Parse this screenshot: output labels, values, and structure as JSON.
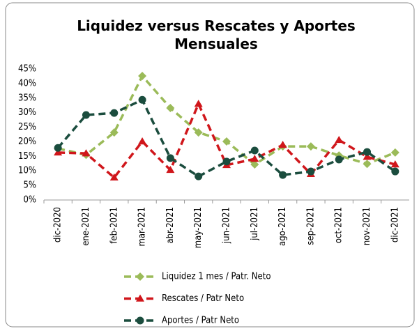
{
  "chart_data": {
    "type": "line",
    "title": "Liquidez versus Rescates y Aportes Mensuales",
    "categories": [
      "dic-2020",
      "ene-2021",
      "feb-2021",
      "mar-2021",
      "abr-2021",
      "may-2021",
      "jun-2021",
      "jul-2021",
      "ago-2021",
      "sep-2021",
      "oct-2021",
      "nov-2021",
      "dic-2021"
    ],
    "series": [
      {
        "name": "Liquidez 1 mes / Patr. Neto",
        "color": "#9bbb59",
        "marker": "diamond",
        "values": [
          17.7,
          15.5,
          23.2,
          42.6,
          31.6,
          23.2,
          20.1,
          12.2,
          18.4,
          18.4,
          15.3,
          12.4,
          16.3
        ]
      },
      {
        "name": "Rescates / Patr Neto",
        "color": "#d0161b",
        "marker": "triangle",
        "values": [
          16.3,
          16,
          7.7,
          20.1,
          10.3,
          33,
          12,
          14.1,
          18.9,
          8.9,
          20.6,
          14.8,
          12.2
        ]
      },
      {
        "name": "Aportes / Patr Neto",
        "color": "#1b4d3e",
        "marker": "circle",
        "values": [
          17.9,
          29.2,
          29.9,
          34.4,
          14.4,
          8.1,
          13.2,
          17,
          8.6,
          9.8,
          13.9,
          16.5,
          9.8
        ]
      }
    ],
    "ylim": [
      0,
      45
    ],
    "yticks": [
      {
        "value": 0,
        "label": "0%"
      },
      {
        "value": 5,
        "label": "5%"
      },
      {
        "value": 10,
        "label": "10%"
      },
      {
        "value": 15,
        "label": "15%"
      },
      {
        "value": 20,
        "label": "20%"
      },
      {
        "value": 25,
        "label": "25%"
      },
      {
        "value": 30,
        "label": "30%"
      },
      {
        "value": 35,
        "label": "35%"
      },
      {
        "value": 40,
        "label": "40%"
      },
      {
        "value": 45,
        "label": "45%"
      }
    ],
    "grid": false,
    "legend": "bottom"
  }
}
